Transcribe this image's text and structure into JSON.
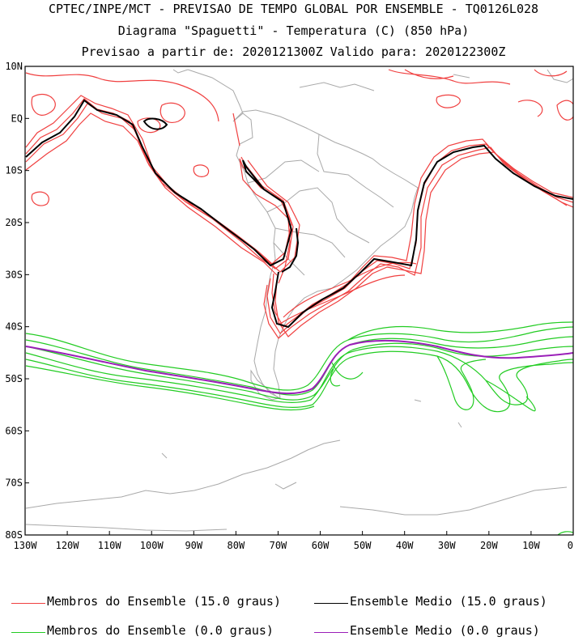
{
  "titles": {
    "line1": "CPTEC/INPE/MCT - PREVISAO DE TEMPO GLOBAL POR ENSEMBLE - TQ0126L028",
    "line2": "Diagrama \"Spaguetti\" - Temperatura (C) (850 hPa)",
    "line3": "Previsao a partir de: 2020121300Z  Valido para: 2020122300Z"
  },
  "axes": {
    "lon_labels": [
      "130W",
      "120W",
      "110W",
      "100W",
      "90W",
      "80W",
      "70W",
      "60W",
      "50W",
      "40W",
      "30W",
      "20W",
      "10W",
      "0"
    ],
    "lat_labels": [
      "10N",
      "EQ",
      "10S",
      "20S",
      "30S",
      "40S",
      "50S",
      "60S",
      "70S",
      "80S"
    ]
  },
  "colors": {
    "member_15": "#f04040",
    "mean_15": "#000000",
    "member_0": "#22cc22",
    "mean_0": "#9a1fb8",
    "coast": "#a9a9a9"
  },
  "legend": [
    {
      "label": "Membros do Ensemble (15.0 graus)",
      "color": "#f04040"
    },
    {
      "label": "Ensemble Medio (15.0 graus)",
      "color": "#000000"
    },
    {
      "label": "Membros do Ensemble (0.0 graus)",
      "color": "#22cc22"
    },
    {
      "label": "Ensemble Medio (0.0 graus)",
      "color": "#9a1fb8"
    }
  ]
}
